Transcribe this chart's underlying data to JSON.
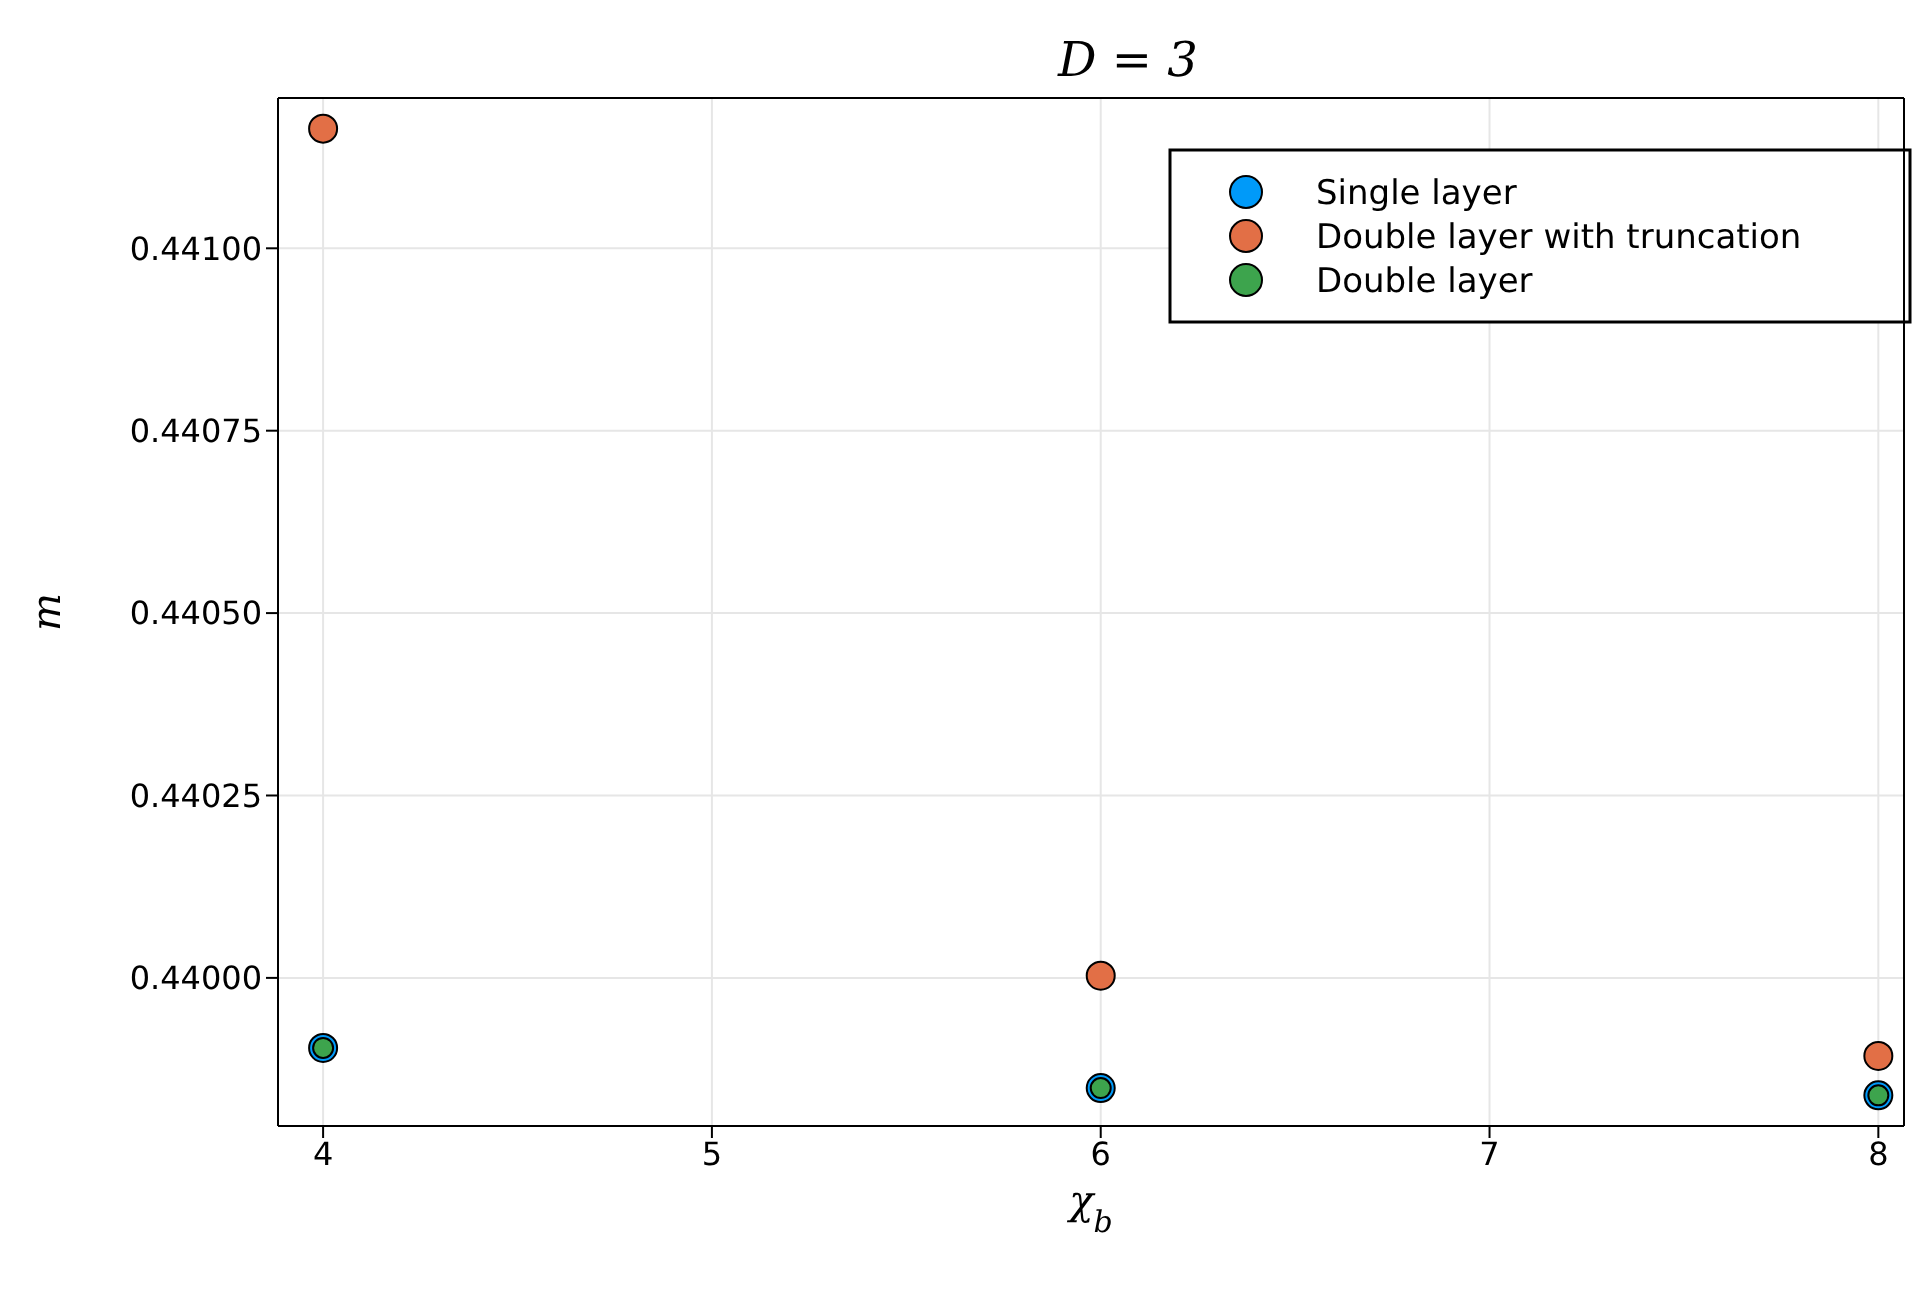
{
  "chart_data": {
    "type": "scatter",
    "title": "D = 3",
    "xlabel": "χ$_{b}$",
    "ylabel": "m",
    "x": [
      4,
      6,
      8
    ],
    "series": [
      {
        "name": "Single layer",
        "color": "#009af9",
        "values": [
          0.439904,
          0.439849,
          0.439839
        ]
      },
      {
        "name": "Double layer with truncation",
        "color": "#e26f46",
        "values": [
          0.441164,
          0.440003,
          0.439893
        ]
      },
      {
        "name": "Double layer",
        "color": "#3da44d",
        "values": [
          0.439904,
          0.439849,
          0.439839
        ]
      }
    ],
    "xlim": [
      3.884,
      8.066
    ],
    "xticks": [
      4,
      5,
      6,
      7,
      8
    ],
    "ylim": [
      0.439797,
      0.441206
    ],
    "yticks": [
      {
        "value": 0.44,
        "label": "0.44000"
      },
      {
        "value": 0.44025,
        "label": "0.44025"
      },
      {
        "value": 0.4405,
        "label": "0.44050"
      },
      {
        "value": 0.44075,
        "label": "0.44075"
      },
      {
        "value": 0.441,
        "label": "0.44100"
      }
    ],
    "grid": true,
    "legend": "top right",
    "marker": "circle"
  }
}
